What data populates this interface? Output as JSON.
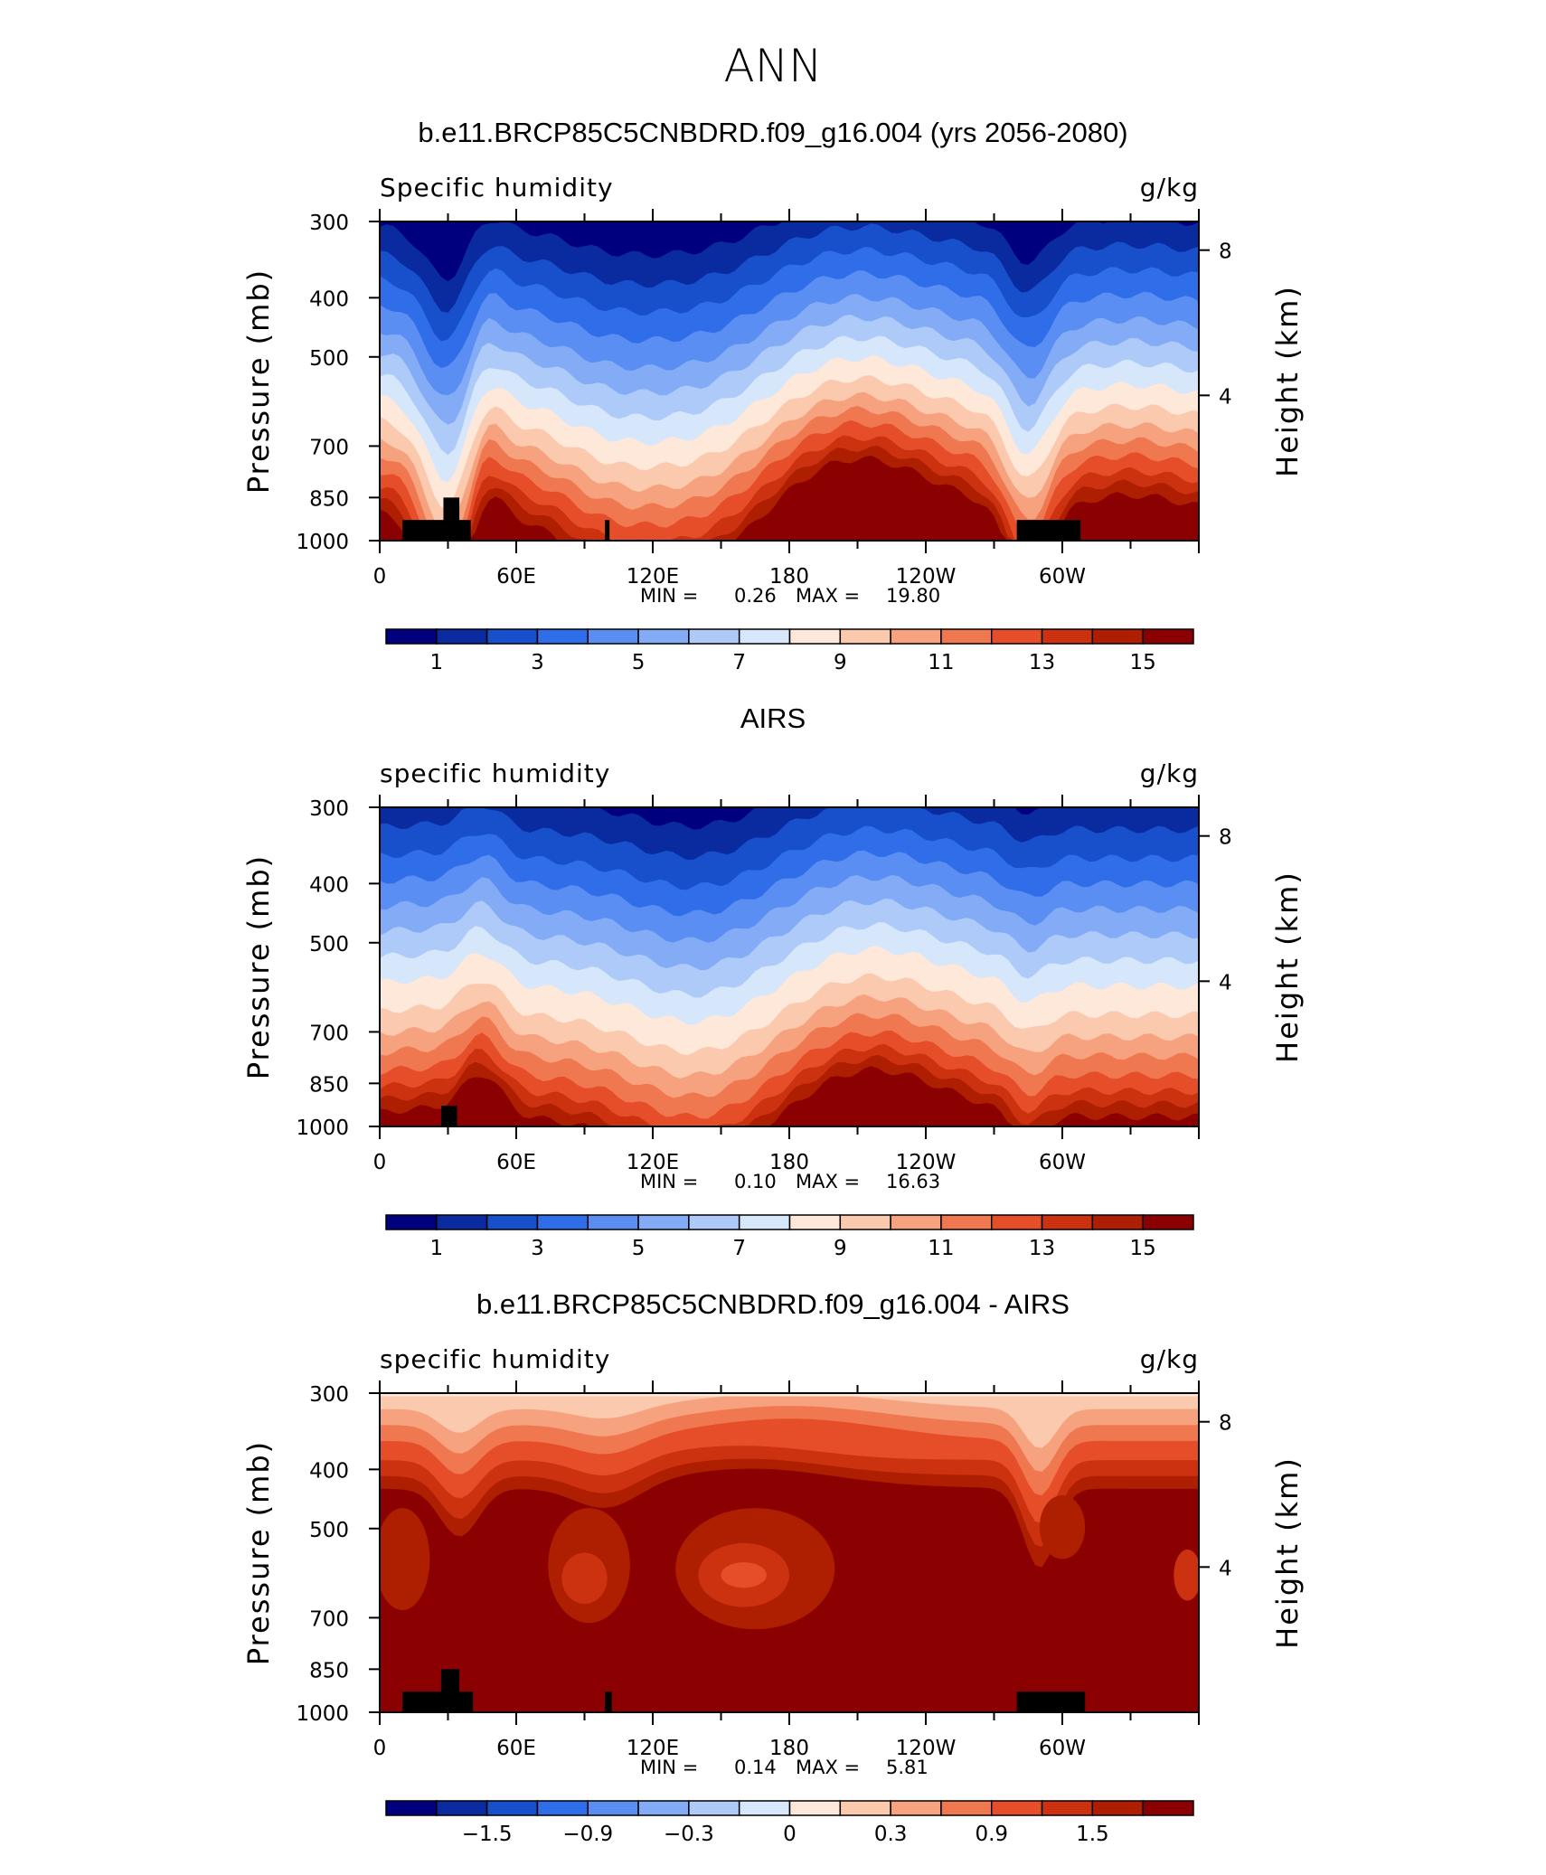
{
  "figure": {
    "title": "ANN",
    "colors": {
      "full": [
        "#00007f",
        "#0a2aa0",
        "#1850cc",
        "#2f6ee8",
        "#5a8ef2",
        "#84acf6",
        "#aecaf8",
        "#d6e6fb",
        "#fde8d9",
        "#fbc9ae",
        "#f6a27e",
        "#f07850",
        "#e64e29",
        "#cc3210",
        "#ad1f00",
        "#8b0000"
      ],
      "diff": [
        "#00007f",
        "#0a2aa0",
        "#1850cc",
        "#2f6ee8",
        "#5a8ef2",
        "#84acf6",
        "#aecaf8",
        "#d6e6fb",
        "#fde8d9",
        "#fbc9ae",
        "#f6a27e",
        "#f07850",
        "#e64e29",
        "#cc3210",
        "#ad1f00",
        "#8b0000"
      ],
      "land": "#000000"
    }
  },
  "chart_data": [
    {
      "type": "heatmap",
      "panel_title": "b.e11.BRCP85C5CNBDRD.f09_g16.004 (yrs 2056-2080)",
      "left_label": "Specific humidity",
      "right_label": "g/kg",
      "ylabel": "Pressure (mb)",
      "y2label": "Height (km)",
      "x_ticks": [
        "0",
        "60E",
        "120E",
        "180",
        "120W",
        "60W"
      ],
      "y_ticks": [
        "300",
        "400",
        "500",
        "700",
        "850",
        "1000"
      ],
      "y2_ticks": [
        "8",
        "4"
      ],
      "min_label": "MIN =",
      "min": "0.26",
      "max_label": "MAX =",
      "max": "19.80",
      "colorbar_labels": [
        "1",
        "3",
        "5",
        "7",
        "9",
        "11",
        "13",
        "15"
      ],
      "x_range": [
        0,
        360
      ],
      "y_range": [
        1000,
        300
      ],
      "land_blocks": [
        [
          10,
          40,
          925
        ],
        [
          28,
          35,
          850
        ],
        [
          99,
          101,
          925
        ],
        [
          280,
          308,
          925
        ]
      ]
    },
    {
      "type": "heatmap",
      "panel_title": "AIRS",
      "left_label": "specific humidity",
      "right_label": "g/kg",
      "ylabel": "Pressure (mb)",
      "y2label": "Height (km)",
      "x_ticks": [
        "0",
        "60E",
        "120E",
        "180",
        "120W",
        "60W"
      ],
      "y_ticks": [
        "300",
        "400",
        "500",
        "700",
        "850",
        "1000"
      ],
      "y2_ticks": [
        "8",
        "4"
      ],
      "min_label": "MIN =",
      "min": "0.10",
      "max_label": "MAX =",
      "max": "16.63",
      "colorbar_labels": [
        "1",
        "3",
        "5",
        "7",
        "9",
        "11",
        "13",
        "15"
      ],
      "x_range": [
        0,
        360
      ],
      "y_range": [
        1000,
        300
      ],
      "land_blocks": [
        [
          27,
          34,
          925
        ]
      ]
    },
    {
      "type": "heatmap",
      "panel_title": "b.e11.BRCP85C5CNBDRD.f09_g16.004 - AIRS",
      "left_label": "specific humidity",
      "right_label": "g/kg",
      "ylabel": "Pressure (mb)",
      "y2label": "Height (km)",
      "x_ticks": [
        "0",
        "60E",
        "120E",
        "180",
        "120W",
        "60W"
      ],
      "y_ticks": [
        "300",
        "400",
        "500",
        "700",
        "850",
        "1000"
      ],
      "y2_ticks": [
        "8",
        "4"
      ],
      "min_label": "MIN =",
      "min": "0.14",
      "max_label": "MAX =",
      "max": "5.81",
      "colorbar_labels": [
        "−1.5",
        "−0.9",
        "−0.3",
        "0",
        "0.3",
        "0.9",
        "1.5"
      ],
      "x_range": [
        0,
        360
      ],
      "y_range": [
        1000,
        300
      ],
      "land_blocks": [
        [
          10,
          41,
          925
        ],
        [
          27,
          35,
          850
        ],
        [
          99,
          102,
          925
        ],
        [
          280,
          310,
          925
        ]
      ]
    }
  ]
}
